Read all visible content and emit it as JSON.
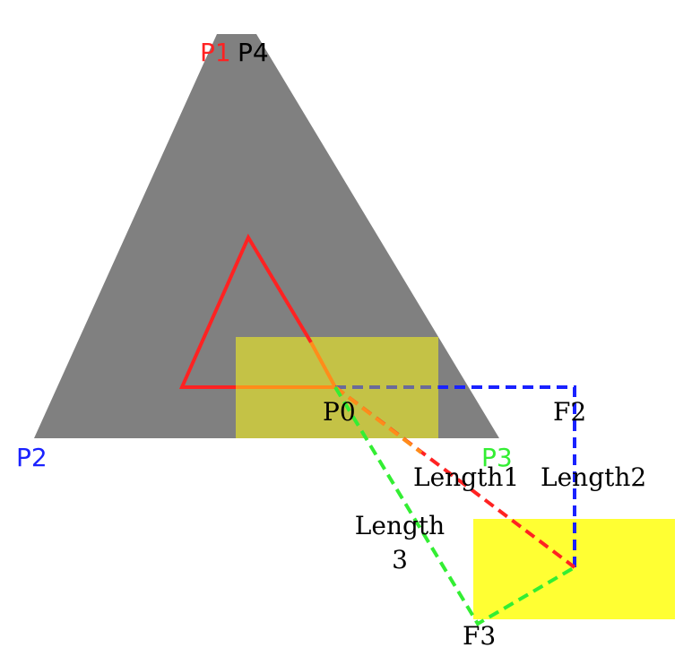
{
  "colors": {
    "big_triangle": "#808080",
    "overlay_rect": "#c8c832",
    "target_rect": "#ffff33",
    "red": "#ff2222",
    "orange": "#ff8c1a",
    "blue": "#1a22ff",
    "green": "#33ee33",
    "p4_color": "#000000"
  },
  "labels": {
    "p1": "P1",
    "p4": "P4",
    "p2": "P2",
    "p3": "P3",
    "p0": "P0",
    "f2": "F2",
    "f3": "F3",
    "length1": "Length1",
    "length2": "Length2",
    "length3": "Length\n3"
  }
}
